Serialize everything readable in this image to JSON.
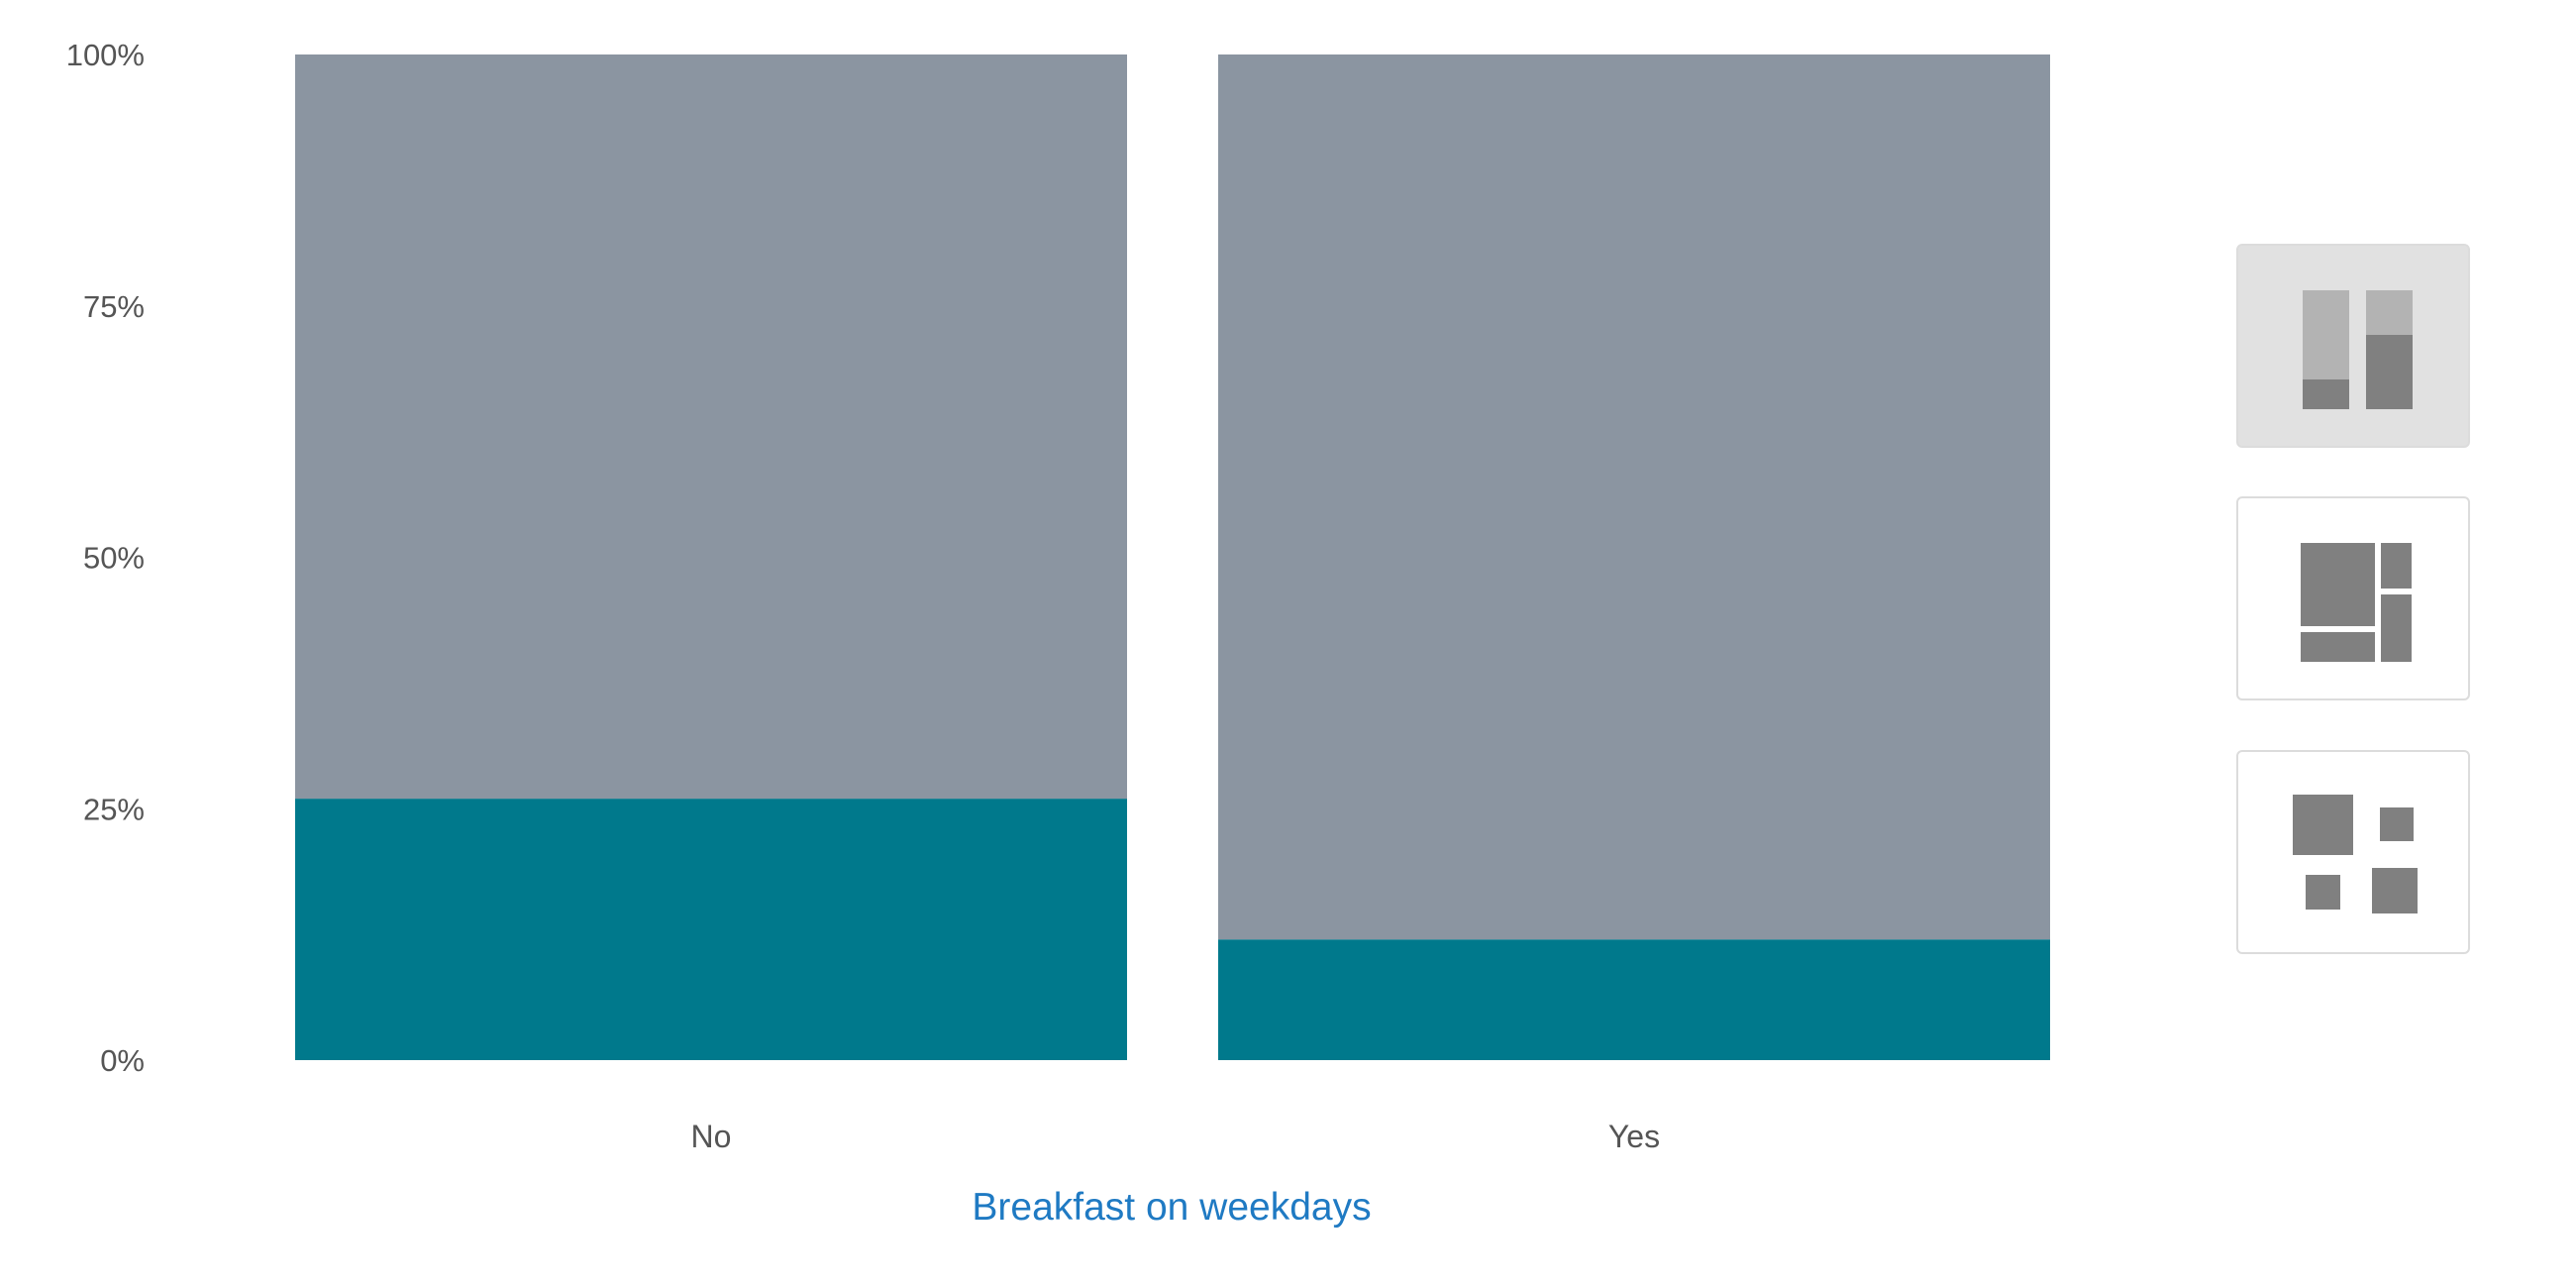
{
  "chart_data": {
    "type": "bar",
    "stacked": true,
    "normalized_percent": true,
    "categories": [
      "No",
      "Yes"
    ],
    "series": [
      {
        "values": [
          0.26,
          0.12
        ],
        "color": "#00798c"
      },
      {
        "values": [
          0.74,
          0.88
        ],
        "color": "#8b95a1"
      }
    ],
    "title": "",
    "xlabel": "Breakfast on weekdays",
    "ylabel": "",
    "ylim": [
      0,
      1
    ],
    "yticks": [
      0,
      0.25,
      0.5,
      0.75,
      1
    ],
    "ytick_labels": [
      "0%",
      "25%",
      "50%",
      "75%",
      "100%"
    ],
    "grid": false,
    "legend": "none"
  },
  "colors": {
    "axis_text": "#555555",
    "xlabel": "#1f7ac3"
  },
  "view_switcher": {
    "selected": "stacked-bars",
    "buttons": [
      {
        "icon": "stacked-bar-chart-icon",
        "active": true
      },
      {
        "icon": "treemap-icon",
        "active": false
      },
      {
        "icon": "bubble-grid-icon",
        "active": false
      }
    ]
  }
}
